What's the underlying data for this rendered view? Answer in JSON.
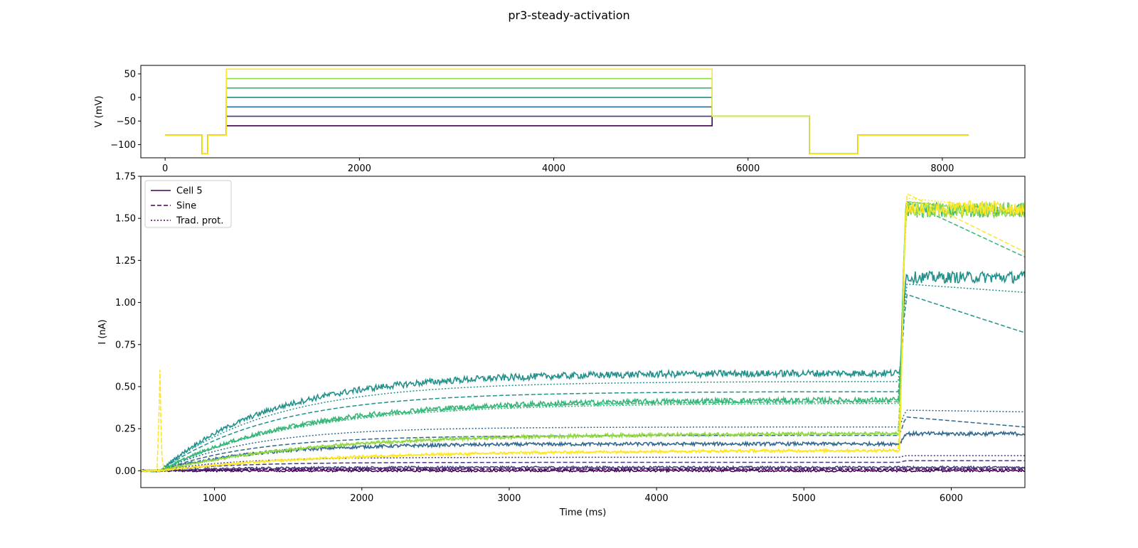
{
  "figure": {
    "title": "pr3-steady-activation"
  },
  "chart_data": [
    {
      "type": "line",
      "title": "",
      "xlabel": "",
      "ylabel": "V (mV)",
      "xlim": [
        -250,
        8850
      ],
      "ylim": [
        -128,
        68
      ],
      "xticks": [
        0,
        2000,
        4000,
        6000,
        8000
      ],
      "yticks": [
        50,
        0,
        -50,
        -100
      ],
      "ytick_labels": [
        "50",
        "0",
        "−50",
        "−100"
      ],
      "grid": false,
      "series": [
        {
          "color": "#440154",
          "step_mV": -60
        },
        {
          "color": "#443983",
          "step_mV": -40
        },
        {
          "color": "#31688e",
          "step_mV": -20
        },
        {
          "color": "#21918c",
          "step_mV": 0
        },
        {
          "color": "#35b779",
          "step_mV": 20
        },
        {
          "color": "#90d743",
          "step_mV": 40
        },
        {
          "color": "#fde725",
          "step_mV": 60
        }
      ],
      "protocol": {
        "holding_mV": -80,
        "prepulse": {
          "from": 380,
          "to": 440,
          "mV": -120
        },
        "step": {
          "from": 630,
          "to": 5630
        },
        "tail": {
          "from": 5630,
          "to": 6630,
          "mV": -40
        },
        "recovery": {
          "from": 6630,
          "to": 7130,
          "mV": -120
        },
        "end": 8270
      }
    },
    {
      "type": "line",
      "title": "",
      "xlabel": "Time (ms)",
      "ylabel": "I (nA)",
      "xlim": [
        500,
        6500
      ],
      "ylim": [
        -0.1,
        1.75
      ],
      "xticks": [
        1000,
        2000,
        3000,
        4000,
        5000,
        6000
      ],
      "yticks": [
        0.0,
        0.25,
        0.5,
        0.75,
        1.0,
        1.25,
        1.5,
        1.75
      ],
      "ytick_labels": [
        "0.00",
        "0.25",
        "0.50",
        "0.75",
        "1.00",
        "1.25",
        "1.50",
        "1.75"
      ],
      "grid": false,
      "legend": {
        "position": "top-left",
        "entries": [
          {
            "label": "Cell 5",
            "style": "solid",
            "color": "#440154"
          },
          {
            "label": "Sine",
            "style": "dashed",
            "color": "#440154"
          },
          {
            "label": "Trad. prot.",
            "style": "dotted",
            "color": "#440154"
          }
        ]
      },
      "step_time_ms": 630,
      "tail_time_ms": 5650,
      "series": [
        {
          "color": "#440154",
          "cell_step_end": 0.0,
          "cell_tail": 0.0,
          "sine_step_end": 0.01,
          "sine_tail_peak": 0.01,
          "sine_tail_end": 0.01,
          "trad_step_end": 0.01,
          "trad_tail_peak": 0.01,
          "trad_tail_end": 0.01
        },
        {
          "color": "#443983",
          "cell_step_end": 0.02,
          "cell_tail": 0.02,
          "sine_step_end": 0.05,
          "sine_tail_peak": 0.06,
          "sine_tail_end": 0.06,
          "trad_step_end": 0.08,
          "trad_tail_peak": 0.09,
          "trad_tail_end": 0.09
        },
        {
          "color": "#31688e",
          "cell_step_end": 0.16,
          "cell_tail": 0.22,
          "sine_step_end": 0.21,
          "sine_tail_peak": 0.32,
          "sine_tail_end": 0.26,
          "trad_step_end": 0.26,
          "trad_tail_peak": 0.36,
          "trad_tail_end": 0.35
        },
        {
          "color": "#21918c",
          "cell_step_end": 0.58,
          "cell_tail": 1.15,
          "sine_step_end": 0.47,
          "sine_tail_peak": 1.05,
          "sine_tail_end": 0.82,
          "trad_step_end": 0.53,
          "trad_tail_peak": 1.11,
          "trad_tail_end": 1.06
        },
        {
          "color": "#35b779",
          "cell_step_end": 0.42,
          "cell_tail": 1.55,
          "sine_step_end": 0.41,
          "sine_tail_peak": 1.6,
          "sine_tail_end": 1.27,
          "trad_step_end": 0.4,
          "trad_tail_peak": 1.6,
          "trad_tail_end": 1.52
        },
        {
          "color": "#90d743",
          "cell_step_end": 0.22,
          "cell_tail": 1.55,
          "sine_step_end": 0.22,
          "sine_tail_peak": 1.6,
          "sine_tail_end": 1.52,
          "trad_step_end": 0.22,
          "trad_tail_peak": 1.6,
          "trad_tail_end": 1.54
        },
        {
          "color": "#fde725",
          "cell_step_end": 0.12,
          "cell_tail": 1.56,
          "sine_step_end": 0.12,
          "sine_tail_peak": 1.65,
          "sine_tail_end": 1.3,
          "trad_step_end": 0.12,
          "trad_tail_peak": 1.62,
          "trad_tail_end": 1.55,
          "artifact_peak": 0.6
        }
      ]
    }
  ]
}
